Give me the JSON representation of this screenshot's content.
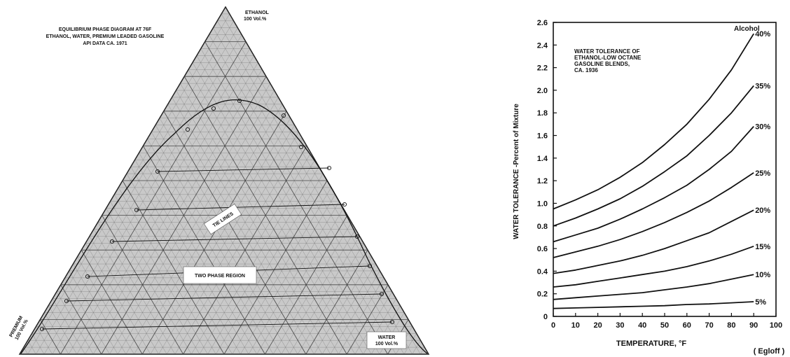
{
  "ternary": {
    "title_lines": [
      "EQUILIBRIUM PHASE DIAGRAM AT 76F",
      "ETHANOL, WATER, PREMIUM LEADED GASOLINE",
      "API DATA CA. 1971"
    ],
    "apex_top": {
      "name": "ETHANOL",
      "amount": "100 Vol.%"
    },
    "apex_left": {
      "name": "PREMIUM",
      "amount": "100 Vol.%"
    },
    "apex_right": {
      "name": "WATER",
      "amount": "100 Vol.%"
    },
    "label_tie_lines": "TIE LINES",
    "label_two_phase": "TWO PHASE REGION",
    "colors": {
      "grid": "#3a3a3a",
      "fill": "#c9c9c9",
      "label_box": "#ffffff"
    }
  },
  "chart_data": [
    {
      "type": "line",
      "title_lines": [
        "WATER TOLERANCE OF",
        "ETHANOL-LOW OCTANE",
        "GASOLINE BLENDS,",
        "CA. 1936"
      ],
      "xlabel": "TEMPERATURE, °F",
      "ylabel": "WATER TOLERANCE -Percent of Mixture",
      "source_note": "( Egloff )",
      "legend_title": "Alcohol",
      "xlim": [
        0,
        100
      ],
      "ylim": [
        0,
        2.6
      ],
      "x_ticks": [
        "0",
        "10",
        "20",
        "30",
        "40",
        "50",
        "60",
        "70",
        "80",
        "90",
        "100"
      ],
      "y_ticks": [
        "0",
        "0.2",
        "0.4",
        "0.6",
        "0.8",
        "1.0",
        "1.2",
        "1.4",
        "1.6",
        "1.8",
        "2.0",
        "2.2",
        "2.4",
        "2.6"
      ],
      "grid": false,
      "series": [
        {
          "name": "5%",
          "x": [
            0,
            10,
            20,
            30,
            40,
            50,
            60,
            70,
            80,
            90
          ],
          "values": [
            0.07,
            0.075,
            0.08,
            0.085,
            0.09,
            0.095,
            0.105,
            0.11,
            0.12,
            0.13
          ]
        },
        {
          "name": "10%",
          "x": [
            0,
            10,
            20,
            30,
            40,
            50,
            60,
            70,
            80,
            90
          ],
          "values": [
            0.15,
            0.165,
            0.18,
            0.195,
            0.21,
            0.235,
            0.26,
            0.29,
            0.33,
            0.37
          ]
        },
        {
          "name": "15%",
          "x": [
            0,
            10,
            20,
            30,
            40,
            50,
            60,
            70,
            80,
            90
          ],
          "values": [
            0.26,
            0.28,
            0.31,
            0.34,
            0.37,
            0.4,
            0.44,
            0.49,
            0.55,
            0.62
          ]
        },
        {
          "name": "20%",
          "x": [
            0,
            10,
            20,
            30,
            40,
            50,
            60,
            70,
            80,
            90
          ],
          "values": [
            0.38,
            0.41,
            0.45,
            0.49,
            0.54,
            0.6,
            0.67,
            0.74,
            0.84,
            0.94
          ]
        },
        {
          "name": "25%",
          "x": [
            0,
            10,
            20,
            30,
            40,
            50,
            60,
            70,
            80,
            90
          ],
          "values": [
            0.52,
            0.57,
            0.62,
            0.68,
            0.75,
            0.83,
            0.92,
            1.02,
            1.14,
            1.27
          ]
        },
        {
          "name": "30%",
          "x": [
            0,
            10,
            20,
            30,
            40,
            50,
            60,
            70,
            80,
            90
          ],
          "values": [
            0.66,
            0.72,
            0.78,
            0.86,
            0.95,
            1.05,
            1.16,
            1.3,
            1.46,
            1.68
          ]
        },
        {
          "name": "35%",
          "x": [
            0,
            10,
            20,
            30,
            40,
            50,
            60,
            70,
            80,
            90
          ],
          "values": [
            0.8,
            0.87,
            0.95,
            1.04,
            1.15,
            1.28,
            1.42,
            1.6,
            1.8,
            2.04
          ]
        },
        {
          "name": "40%",
          "x": [
            0,
            10,
            20,
            30,
            40,
            50,
            60,
            70,
            80,
            90
          ],
          "values": [
            0.95,
            1.03,
            1.12,
            1.23,
            1.36,
            1.52,
            1.7,
            1.92,
            2.18,
            2.5
          ]
        }
      ]
    }
  ]
}
